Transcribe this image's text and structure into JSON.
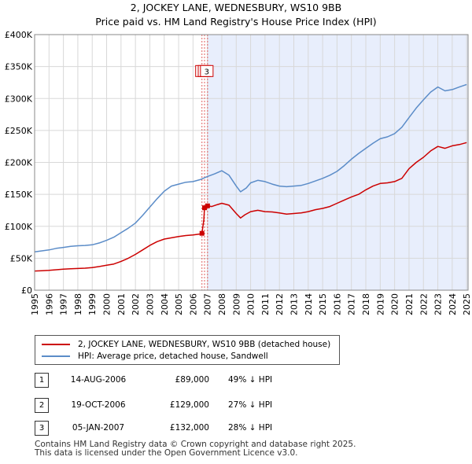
{
  "header": {
    "title": "2, JOCKEY LANE, WEDNESBURY, WS10 9BB",
    "subtitle": "Price paid vs. HM Land Registry's House Price Index (HPI)"
  },
  "chart_data": {
    "type": "line",
    "title": "2, JOCKEY LANE, WEDNESBURY, WS10 9BB",
    "subtitle": "Price paid vs. HM Land Registry's House Price Index (HPI)",
    "xlim": [
      1995,
      2025.1
    ],
    "ylim": [
      0,
      400000
    ],
    "x_ticks": [
      1995,
      1996,
      1997,
      1998,
      1999,
      2000,
      2001,
      2002,
      2003,
      2004,
      2005,
      2006,
      2007,
      2008,
      2009,
      2010,
      2011,
      2012,
      2013,
      2014,
      2015,
      2016,
      2017,
      2018,
      2019,
      2020,
      2021,
      2022,
      2023,
      2024,
      2025
    ],
    "y_ticks": [
      {
        "value": 0,
        "label": "£0"
      },
      {
        "value": 50000,
        "label": "£50K"
      },
      {
        "value": 100000,
        "label": "£100K"
      },
      {
        "value": 150000,
        "label": "£150K"
      },
      {
        "value": 200000,
        "label": "£200K"
      },
      {
        "value": 250000,
        "label": "£250K"
      },
      {
        "value": 300000,
        "label": "£300K"
      },
      {
        "value": 350000,
        "label": "£350K"
      },
      {
        "value": 400000,
        "label": "£400K"
      }
    ],
    "grid": true,
    "shaded_from": 2007.01,
    "colors": {
      "property": "#cc0000",
      "hpi": "#5b8cc8",
      "shade": "#e8eefc",
      "marker_line": "#e06060"
    },
    "series": [
      {
        "name": "2, JOCKEY LANE, WEDNESBURY, WS10 9BB (detached house)",
        "color": "#cc0000",
        "points": [
          [
            1995,
            30000
          ],
          [
            1995.5,
            30500
          ],
          [
            1996,
            31000
          ],
          [
            1996.5,
            32000
          ],
          [
            1997,
            33000
          ],
          [
            1997.5,
            33500
          ],
          [
            1998,
            34000
          ],
          [
            1998.5,
            34500
          ],
          [
            1999,
            35500
          ],
          [
            1999.5,
            37000
          ],
          [
            2000,
            39000
          ],
          [
            2000.5,
            41000
          ],
          [
            2001,
            45000
          ],
          [
            2001.5,
            50000
          ],
          [
            2002,
            56000
          ],
          [
            2002.5,
            63000
          ],
          [
            2003,
            70000
          ],
          [
            2003.5,
            76000
          ],
          [
            2004,
            80000
          ],
          [
            2004.5,
            82000
          ],
          [
            2005,
            84000
          ],
          [
            2005.5,
            85500
          ],
          [
            2006,
            86500
          ],
          [
            2006.5,
            88000
          ],
          [
            2006.62,
            89000
          ],
          [
            2006.75,
            110000
          ],
          [
            2006.8,
            129000
          ],
          [
            2007.01,
            132000
          ],
          [
            2007.3,
            131000
          ],
          [
            2007.7,
            134000
          ],
          [
            2008.0,
            136000
          ],
          [
            2008.5,
            133000
          ],
          [
            2009.0,
            120000
          ],
          [
            2009.3,
            113000
          ],
          [
            2009.6,
            118000
          ],
          [
            2010,
            123000
          ],
          [
            2010.5,
            125000
          ],
          [
            2011,
            123000
          ],
          [
            2011.5,
            122500
          ],
          [
            2012,
            121000
          ],
          [
            2012.5,
            119000
          ],
          [
            2013,
            120000
          ],
          [
            2013.5,
            121000
          ],
          [
            2014,
            123000
          ],
          [
            2014.5,
            126000
          ],
          [
            2015,
            128000
          ],
          [
            2015.5,
            131000
          ],
          [
            2016,
            136000
          ],
          [
            2016.5,
            141000
          ],
          [
            2017,
            146000
          ],
          [
            2017.5,
            150000
          ],
          [
            2018,
            157000
          ],
          [
            2018.5,
            163000
          ],
          [
            2019,
            167000
          ],
          [
            2019.5,
            168000
          ],
          [
            2020,
            170000
          ],
          [
            2020.5,
            175000
          ],
          [
            2021,
            190000
          ],
          [
            2021.5,
            200000
          ],
          [
            2022,
            208000
          ],
          [
            2022.5,
            218000
          ],
          [
            2023,
            225000
          ],
          [
            2023.5,
            222000
          ],
          [
            2024,
            226000
          ],
          [
            2024.5,
            228000
          ],
          [
            2025,
            231000
          ]
        ]
      },
      {
        "name": "HPI: Average price, detached house, Sandwell",
        "color": "#5b8cc8",
        "points": [
          [
            1995,
            60000
          ],
          [
            1995.5,
            61500
          ],
          [
            1996,
            63000
          ],
          [
            1996.5,
            65500
          ],
          [
            1997,
            67000
          ],
          [
            1997.5,
            68500
          ],
          [
            1998,
            69500
          ],
          [
            1998.5,
            70000
          ],
          [
            1999,
            71000
          ],
          [
            1999.5,
            74000
          ],
          [
            2000,
            78000
          ],
          [
            2000.5,
            83000
          ],
          [
            2001,
            90000
          ],
          [
            2001.5,
            97000
          ],
          [
            2002,
            105000
          ],
          [
            2002.5,
            117000
          ],
          [
            2003,
            130000
          ],
          [
            2003.5,
            143000
          ],
          [
            2004,
            155000
          ],
          [
            2004.5,
            163000
          ],
          [
            2005,
            166000
          ],
          [
            2005.5,
            169000
          ],
          [
            2006,
            170000
          ],
          [
            2006.5,
            173000
          ],
          [
            2007,
            178000
          ],
          [
            2007.5,
            182000
          ],
          [
            2008,
            187000
          ],
          [
            2008.5,
            180000
          ],
          [
            2009,
            163000
          ],
          [
            2009.3,
            154000
          ],
          [
            2009.7,
            160000
          ],
          [
            2010,
            168000
          ],
          [
            2010.5,
            172000
          ],
          [
            2011,
            170000
          ],
          [
            2011.5,
            166000
          ],
          [
            2012,
            163000
          ],
          [
            2012.5,
            162000
          ],
          [
            2013,
            163000
          ],
          [
            2013.5,
            164000
          ],
          [
            2014,
            167000
          ],
          [
            2014.5,
            171000
          ],
          [
            2015,
            175000
          ],
          [
            2015.5,
            180000
          ],
          [
            2016,
            186000
          ],
          [
            2016.5,
            195000
          ],
          [
            2017,
            205000
          ],
          [
            2017.5,
            214000
          ],
          [
            2018,
            222000
          ],
          [
            2018.5,
            230000
          ],
          [
            2019,
            237000
          ],
          [
            2019.5,
            240000
          ],
          [
            2020,
            245000
          ],
          [
            2020.5,
            255000
          ],
          [
            2021,
            270000
          ],
          [
            2021.5,
            285000
          ],
          [
            2022,
            298000
          ],
          [
            2022.5,
            310000
          ],
          [
            2023,
            318000
          ],
          [
            2023.5,
            312000
          ],
          [
            2024,
            314000
          ],
          [
            2024.5,
            318000
          ],
          [
            2025,
            322000
          ]
        ]
      }
    ],
    "transactions": [
      {
        "num": "1",
        "date": "14-AUG-2006",
        "x": 2006.62,
        "price_value": 89000,
        "price": "£89,000",
        "hpi": "49% ↓ HPI"
      },
      {
        "num": "2",
        "date": "19-OCT-2006",
        "x": 2006.8,
        "price_value": 129000,
        "price": "£129,000",
        "hpi": "27% ↓ HPI"
      },
      {
        "num": "3",
        "date": "05-JAN-2007",
        "x": 2007.01,
        "price_value": 132000,
        "price": "£132,000",
        "hpi": "28% ↓ HPI"
      }
    ],
    "chart_markers": [
      {
        "label": "1"
      },
      {
        "label": "2"
      },
      {
        "label": "3"
      }
    ]
  },
  "legend": {
    "property_label": "2, JOCKEY LANE, WEDNESBURY, WS10 9BB (detached house)",
    "hpi_label": "HPI: Average price, detached house, Sandwell"
  },
  "footer": {
    "line1": "Contains HM Land Registry data © Crown copyright and database right 2025.",
    "line2": "This data is licensed under the Open Government Licence v3.0."
  }
}
